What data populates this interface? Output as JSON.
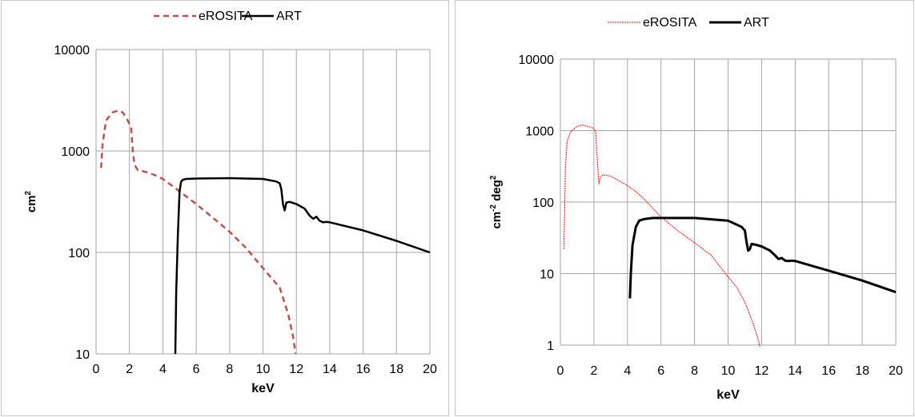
{
  "chart_data": [
    {
      "type": "line",
      "title": "",
      "xlabel": "keV",
      "ylabel": "cm",
      "ylabel_sup": "2",
      "xlim": [
        0,
        20
      ],
      "ylim": [
        10,
        10000
      ],
      "yscale": "log",
      "xticks": [
        "0",
        "2",
        "4",
        "6",
        "8",
        "10",
        "12",
        "14",
        "16",
        "18",
        "20"
      ],
      "yticks": [
        "10",
        "100",
        "1000",
        "10000"
      ],
      "grid": true,
      "legend_position": "top-center",
      "series": [
        {
          "name": "eROSITA",
          "color": "#c0504d",
          "style": "dashed",
          "x": [
            0.3,
            0.4,
            0.6,
            0.8,
            1.0,
            1.3,
            1.6,
            1.9,
            2.1,
            2.2,
            2.3,
            2.5,
            3.0,
            3.5,
            4.0,
            4.5,
            5.0,
            6.0,
            7.0,
            8.0,
            9.0,
            10.0,
            11.0,
            11.5,
            11.8,
            11.95
          ],
          "y": [
            680,
            1200,
            2000,
            2200,
            2400,
            2500,
            2400,
            2000,
            1700,
            1000,
            730,
            650,
            620,
            580,
            530,
            460,
            400,
            300,
            220,
            160,
            110,
            70,
            45,
            25,
            15,
            10
          ]
        },
        {
          "name": "ART",
          "color": "#000000",
          "style": "solid",
          "x": [
            4.75,
            4.8,
            4.9,
            5.0,
            5.1,
            5.2,
            5.4,
            6.0,
            8.0,
            10.0,
            10.8,
            11.0,
            11.1,
            11.2,
            11.3,
            11.4,
            11.6,
            12.0,
            12.5,
            12.8,
            13.0,
            13.2,
            13.4,
            13.6,
            13.8,
            14.0,
            16.0,
            18.0,
            20.0
          ],
          "y": [
            10,
            40,
            150,
            400,
            500,
            520,
            530,
            535,
            540,
            530,
            500,
            480,
            420,
            300,
            260,
            310,
            315,
            300,
            270,
            230,
            215,
            225,
            205,
            198,
            200,
            198,
            165,
            130,
            100
          ]
        }
      ]
    },
    {
      "type": "line",
      "title": "",
      "xlabel": "keV",
      "ylabel": "cm",
      "ylabel_sup": "-2",
      "ylabel_unit2": " deg",
      "ylabel_unit2_sup": "2",
      "xlim": [
        0,
        20
      ],
      "ylim": [
        1,
        10000
      ],
      "yscale": "log",
      "xticks": [
        "0",
        "2",
        "4",
        "6",
        "8",
        "10",
        "12",
        "14",
        "16",
        "18",
        "20"
      ],
      "yticks": [
        "1",
        "10",
        "100",
        "1000",
        "10000"
      ],
      "grid": true,
      "legend_position": "top-center",
      "series": [
        {
          "name": "eROSITA",
          "color": "#ff0000",
          "style": "thin",
          "x": [
            0.2,
            0.25,
            0.3,
            0.4,
            0.6,
            0.8,
            1.0,
            1.3,
            1.6,
            1.9,
            2.1,
            2.2,
            2.3,
            2.4,
            2.6,
            3.0,
            3.5,
            4.0,
            4.5,
            5.0,
            6.0,
            7.0,
            8.0,
            9.0,
            10.0,
            10.5,
            11.0,
            11.5,
            11.8,
            11.9
          ],
          "y": [
            22,
            60,
            300,
            700,
            950,
            1050,
            1150,
            1200,
            1150,
            1100,
            1000,
            400,
            180,
            230,
            240,
            230,
            200,
            170,
            140,
            110,
            62,
            40,
            27,
            18,
            9,
            6.5,
            4,
            2,
            1.2,
            0.95
          ]
        },
        {
          "name": "ART",
          "color": "#000000",
          "style": "thick",
          "x": [
            4.15,
            4.2,
            4.3,
            4.5,
            4.7,
            5.0,
            5.5,
            6.0,
            8.0,
            10.0,
            10.8,
            11.0,
            11.1,
            11.2,
            11.3,
            11.4,
            11.6,
            12.0,
            12.5,
            12.8,
            13.0,
            13.2,
            13.4,
            13.6,
            13.8,
            14.0,
            16.0,
            18.0,
            20.0
          ],
          "y": [
            4.5,
            10,
            25,
            45,
            55,
            58,
            60,
            60,
            60,
            55,
            45,
            40,
            28,
            21,
            22,
            26,
            25.5,
            24,
            21,
            18,
            16,
            16.5,
            15.2,
            15,
            15.2,
            15,
            11,
            8,
            5.5
          ]
        }
      ]
    }
  ]
}
